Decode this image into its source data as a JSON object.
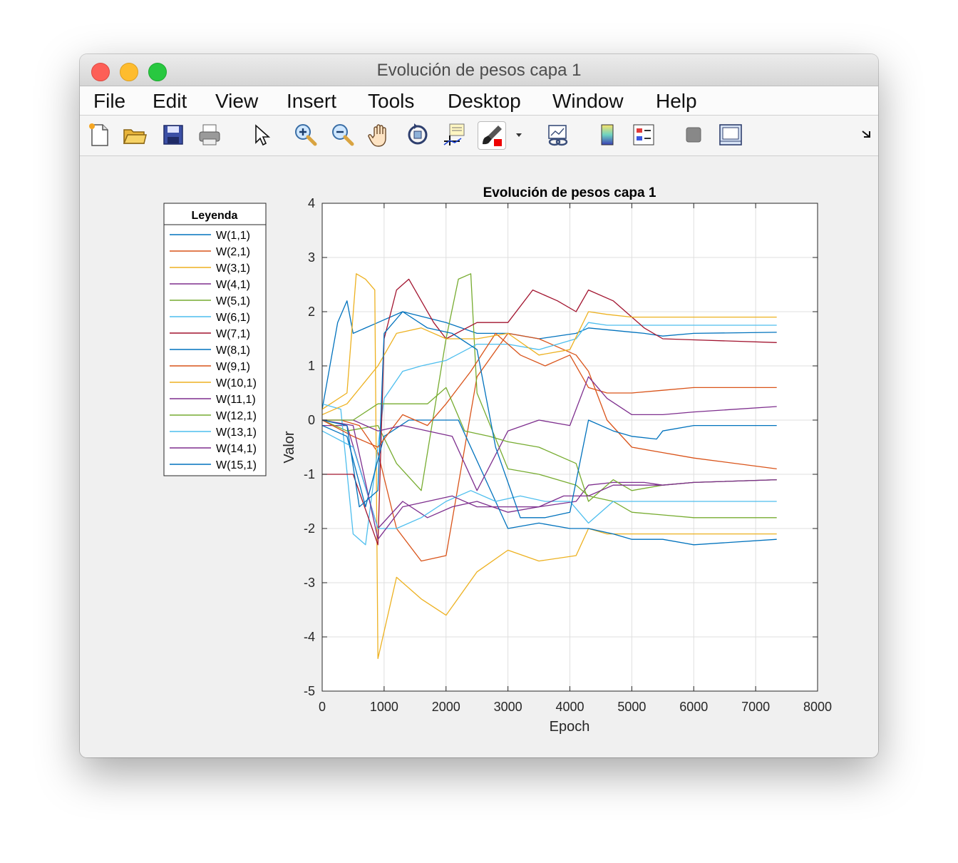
{
  "window": {
    "title": "Evolución de pesos capa 1"
  },
  "menu": [
    "File",
    "Edit",
    "View",
    "Insert",
    "Tools",
    "Desktop",
    "Window",
    "Help"
  ],
  "toolbar": [
    "new-figure-icon",
    "open-file-icon",
    "save-icon",
    "print-icon",
    "pointer-icon",
    "zoom-in-icon",
    "zoom-out-icon",
    "pan-icon",
    "rotate-3d-icon",
    "data-cursor-icon",
    "brush-icon",
    "brush-dropdown-icon",
    "link-plot-icon",
    "colorbar-icon",
    "legend-icon",
    "hide-plot-tools-icon",
    "show-plot-tools-icon",
    "dock-icon"
  ],
  "colors": {
    "figure_bg": "#f0f0f0",
    "axes_bg": "#ffffff",
    "grid": "#dfdfdf"
  },
  "chart_data": {
    "type": "line",
    "title": "Evolución de pesos capa 1",
    "xlabel": "Epoch",
    "ylabel": "Valor",
    "xlim": [
      0,
      8000
    ],
    "ylim": [
      -5,
      4
    ],
    "xticks": [
      0,
      1000,
      2000,
      3000,
      4000,
      5000,
      6000,
      7000,
      8000
    ],
    "yticks": [
      -5,
      -4,
      -3,
      -2,
      -1,
      0,
      1,
      2,
      3,
      4
    ],
    "grid": true,
    "legend": {
      "title": "Leyenda",
      "placement": "outside-left"
    },
    "series": [
      {
        "name": "W(1,1)",
        "color": "#0072BD",
        "x": [
          0,
          250,
          400,
          500,
          900,
          1300,
          2000,
          2500,
          3000,
          3500,
          4100,
          4300,
          5200,
          5500,
          6000,
          7340
        ],
        "y": [
          0.2,
          1.8,
          2.2,
          1.6,
          1.8,
          2.0,
          1.8,
          1.6,
          1.6,
          1.5,
          1.6,
          1.7,
          1.6,
          1.55,
          1.6,
          1.62
        ]
      },
      {
        "name": "W(2,1)",
        "color": "#D95319",
        "x": [
          0,
          300,
          600,
          900,
          1200,
          1600,
          2000,
          2500,
          3000,
          3500,
          4100,
          4300,
          4600,
          5000,
          5500,
          6000,
          7340
        ],
        "y": [
          0,
          0,
          -0.1,
          -0.6,
          -2.0,
          -2.6,
          -2.5,
          0.8,
          1.6,
          1.5,
          1.2,
          0.9,
          0.0,
          -0.5,
          -0.6,
          -0.7,
          -0.9
        ]
      },
      {
        "name": "W(3,1)",
        "color": "#EDB120",
        "x": [
          0,
          400,
          550,
          700,
          850,
          900,
          1200,
          1600,
          2000,
          2500,
          3000,
          3500,
          4100,
          4300,
          4600,
          5000,
          6000,
          7340
        ],
        "y": [
          0.2,
          0.5,
          2.7,
          2.6,
          2.4,
          -4.4,
          -2.9,
          -3.3,
          -3.6,
          -2.8,
          -2.4,
          -2.6,
          -2.5,
          -2.0,
          -2.1,
          -2.1,
          -2.1,
          -2.1
        ]
      },
      {
        "name": "W(4,1)",
        "color": "#7E2F8E",
        "x": [
          0,
          400,
          900,
          1300,
          1700,
          2100,
          2500,
          3000,
          3500,
          4100,
          4300,
          4700,
          5200,
          5500,
          6000,
          7340
        ],
        "y": [
          -0.1,
          -0.1,
          -2.0,
          -1.5,
          -1.8,
          -1.6,
          -1.5,
          -1.7,
          -1.6,
          -1.5,
          -1.2,
          -1.15,
          -1.15,
          -1.2,
          -1.15,
          -1.1
        ]
      },
      {
        "name": "W(5,1)",
        "color": "#77AC30",
        "x": [
          0,
          400,
          900,
          1200,
          1600,
          2000,
          2200,
          2400,
          2500,
          3000,
          3500,
          4100,
          4300,
          4700,
          5000,
          5500,
          6000,
          7340
        ],
        "y": [
          0,
          -0.2,
          -0.1,
          -0.8,
          -1.3,
          1.5,
          2.6,
          2.7,
          0.5,
          -0.9,
          -1.0,
          -1.2,
          -1.4,
          -1.5,
          -1.7,
          -1.75,
          -1.8,
          -1.8
        ]
      },
      {
        "name": "W(6,1)",
        "color": "#4DBEEE",
        "x": [
          0,
          300,
          500,
          700,
          1000,
          1300,
          1600,
          2000,
          2500,
          3000,
          3500,
          4100,
          4300,
          4600,
          5000,
          5500,
          6000,
          7340
        ],
        "y": [
          0.3,
          0.2,
          -2.1,
          -2.3,
          0.4,
          0.9,
          1.0,
          1.1,
          1.4,
          1.4,
          1.3,
          1.5,
          1.8,
          1.75,
          1.75,
          1.75,
          1.75,
          1.75
        ]
      },
      {
        "name": "W(7,1)",
        "color": "#A2142F",
        "x": [
          0,
          500,
          900,
          1000,
          1200,
          1400,
          1800,
          2000,
          2500,
          3000,
          3400,
          3800,
          4100,
          4300,
          4700,
          5200,
          5500,
          6000,
          7340
        ],
        "y": [
          -1.0,
          -1.0,
          -2.3,
          1.5,
          2.4,
          2.6,
          1.8,
          1.5,
          1.8,
          1.8,
          2.4,
          2.2,
          2.0,
          2.4,
          2.2,
          1.7,
          1.5,
          1.48,
          1.43
        ]
      },
      {
        "name": "W(8,1)",
        "color": "#0072BD",
        "x": [
          0,
          400,
          700,
          1000,
          1400,
          1800,
          2200,
          2600,
          3000,
          3500,
          4000,
          4300,
          4700,
          5000,
          5500,
          6000,
          7340
        ],
        "y": [
          -0.1,
          -0.3,
          -1.6,
          -0.3,
          0.0,
          0.0,
          0.0,
          -1.0,
          -2.0,
          -1.9,
          -2.0,
          -2.0,
          -2.1,
          -2.2,
          -2.2,
          -2.3,
          -2.2
        ]
      },
      {
        "name": "W(9,1)",
        "color": "#D95319",
        "x": [
          0,
          500,
          900,
          1300,
          1700,
          2000,
          2400,
          2800,
          3200,
          3600,
          4000,
          4300,
          4600,
          5000,
          5500,
          6000,
          7340
        ],
        "y": [
          0,
          -0.3,
          -0.5,
          0.1,
          -0.1,
          0.3,
          0.9,
          1.6,
          1.2,
          1.0,
          1.2,
          0.6,
          0.5,
          0.5,
          0.55,
          0.6,
          0.6
        ]
      },
      {
        "name": "W(10,1)",
        "color": "#EDB120",
        "x": [
          0,
          400,
          900,
          1200,
          1600,
          2000,
          2500,
          3000,
          3500,
          4000,
          4300,
          4600,
          5000,
          5500,
          6000,
          7340
        ],
        "y": [
          0.1,
          0.3,
          1.0,
          1.6,
          1.7,
          1.5,
          1.5,
          1.6,
          1.2,
          1.3,
          2.0,
          1.95,
          1.9,
          1.9,
          1.9,
          1.9
        ]
      },
      {
        "name": "W(11,1)",
        "color": "#7E2F8E",
        "x": [
          0,
          500,
          900,
          1300,
          1700,
          2100,
          2500,
          3000,
          3500,
          4000,
          4300,
          4600,
          5000,
          5500,
          6000,
          7340
        ],
        "y": [
          0,
          0,
          -0.2,
          -0.1,
          -0.2,
          -0.3,
          -1.3,
          -0.2,
          0.0,
          -0.1,
          0.8,
          0.4,
          0.1,
          0.1,
          0.15,
          0.25
        ]
      },
      {
        "name": "W(12,1)",
        "color": "#77AC30",
        "x": [
          0,
          500,
          900,
          1300,
          1700,
          2000,
          2300,
          2700,
          3000,
          3500,
          4100,
          4300,
          4700,
          5000,
          5500,
          6000,
          7340
        ],
        "y": [
          0,
          0,
          0.3,
          0.3,
          0.3,
          0.6,
          -0.2,
          -0.3,
          -0.4,
          -0.5,
          -0.8,
          -1.5,
          -1.1,
          -1.3,
          -1.2,
          -1.15,
          -1.1
        ]
      },
      {
        "name": "W(13,1)",
        "color": "#4DBEEE",
        "x": [
          0,
          500,
          900,
          1200,
          1600,
          2000,
          2400,
          2800,
          3200,
          3600,
          4000,
          4300,
          4700,
          5000,
          5500,
          6000,
          7340
        ],
        "y": [
          -0.2,
          -0.5,
          -2.0,
          -2.0,
          -1.8,
          -1.5,
          -1.3,
          -1.5,
          -1.4,
          -1.5,
          -1.5,
          -1.9,
          -1.5,
          -1.5,
          -1.5,
          -1.5,
          -1.5
        ]
      },
      {
        "name": "W(14,1)",
        "color": "#7E2F8E",
        "x": [
          0,
          500,
          900,
          1300,
          1700,
          2100,
          2500,
          3000,
          3500,
          3900,
          4300,
          4700,
          5000,
          5500,
          6000,
          7340
        ],
        "y": [
          0,
          -0.1,
          -2.2,
          -1.6,
          -1.5,
          -1.4,
          -1.6,
          -1.6,
          -1.6,
          -1.4,
          -1.4,
          -1.2,
          -1.2,
          -1.2,
          -1.15,
          -1.1
        ]
      },
      {
        "name": "W(15,1)",
        "color": "#0072BD",
        "x": [
          0,
          400,
          600,
          900,
          1000,
          1300,
          1700,
          2100,
          2500,
          2800,
          3200,
          3600,
          4000,
          4300,
          4700,
          5000,
          5400,
          5500,
          6000,
          7340
        ],
        "y": [
          0,
          -0.1,
          -1.6,
          -1.3,
          1.6,
          2.0,
          1.7,
          1.6,
          1.3,
          -0.5,
          -1.8,
          -1.8,
          -1.7,
          0.0,
          -0.2,
          -0.3,
          -0.35,
          -0.2,
          -0.1,
          -0.1
        ]
      }
    ]
  }
}
